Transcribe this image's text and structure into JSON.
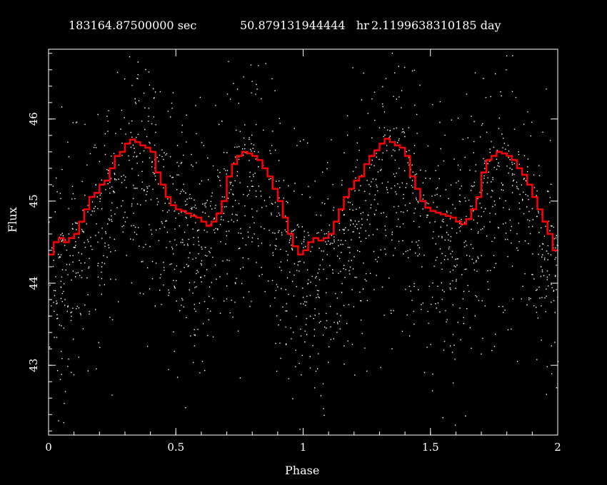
{
  "header": {
    "seconds": "183164.87500000 sec",
    "hours": "50.879131944444   hr",
    "days": "2.1199638310185 day"
  },
  "colors": {
    "background": "#000000",
    "points": "#ffffff",
    "model": "#ff0000",
    "axes": "#ffffff"
  },
  "chart_data": {
    "type": "scatter",
    "title": "",
    "xlabel": "Phase",
    "ylabel": "Flux",
    "xlim": [
      0,
      2
    ],
    "ylim": [
      42.15,
      46.85
    ],
    "x_ticks": [
      "0",
      "0.5",
      "1",
      "1.5",
      "2"
    ],
    "y_ticks": [
      "43",
      "44",
      "45",
      "46"
    ],
    "x_tick_values": [
      0,
      0.5,
      1,
      1.5,
      2
    ],
    "y_tick_values": [
      43,
      44,
      45,
      46
    ],
    "grid": false,
    "legend": "none",
    "series": [
      {
        "kind": "scatter",
        "description": "dense noisy flux measurements folded on phase, repeated over two cycles",
        "mean_phase": [
          0,
          0.1,
          0.2,
          0.3,
          0.33,
          0.4,
          0.5,
          0.6,
          0.7,
          0.78,
          0.85,
          0.95,
          1.0
        ],
        "mean_flux": [
          44.35,
          44.55,
          45.0,
          45.55,
          45.75,
          45.65,
          45.05,
          44.8,
          45.3,
          45.6,
          45.4,
          44.7,
          44.35
        ]
      },
      {
        "kind": "step",
        "description": "binned mean flux (red step curve)",
        "x": [
          0.0,
          0.02,
          0.04,
          0.06,
          0.08,
          0.1,
          0.12,
          0.14,
          0.16,
          0.18,
          0.2,
          0.22,
          0.24,
          0.26,
          0.28,
          0.3,
          0.32,
          0.34,
          0.36,
          0.38,
          0.4,
          0.42,
          0.44,
          0.46,
          0.48,
          0.5,
          0.52,
          0.54,
          0.56,
          0.58,
          0.6,
          0.62,
          0.64,
          0.66,
          0.68,
          0.7,
          0.72,
          0.74,
          0.76,
          0.78,
          0.8,
          0.82,
          0.84,
          0.86,
          0.88,
          0.9,
          0.92,
          0.94,
          0.96,
          0.98,
          1.0,
          1.02,
          1.04,
          1.06,
          1.08,
          1.1,
          1.12,
          1.14,
          1.16,
          1.18,
          1.2,
          1.22,
          1.24,
          1.26,
          1.28,
          1.3,
          1.32,
          1.34,
          1.36,
          1.38,
          1.4,
          1.42,
          1.44,
          1.46,
          1.48,
          1.5,
          1.52,
          1.54,
          1.56,
          1.58,
          1.6,
          1.62,
          1.64,
          1.66,
          1.68,
          1.7,
          1.72,
          1.74,
          1.76,
          1.78,
          1.8,
          1.82,
          1.84,
          1.86,
          1.88,
          1.9,
          1.92,
          1.94,
          1.96,
          1.98
        ],
        "y": [
          44.35,
          44.5,
          44.55,
          44.5,
          44.55,
          44.6,
          44.75,
          44.9,
          45.05,
          45.1,
          45.2,
          45.25,
          45.4,
          45.55,
          45.6,
          45.7,
          45.75,
          45.72,
          45.68,
          45.65,
          45.6,
          45.35,
          45.2,
          45.05,
          44.95,
          44.9,
          44.88,
          44.85,
          44.82,
          44.8,
          44.75,
          44.7,
          44.75,
          44.85,
          45.0,
          45.3,
          45.45,
          45.55,
          45.6,
          45.58,
          45.55,
          45.5,
          45.4,
          45.3,
          45.15,
          45.0,
          44.8,
          44.6,
          44.45,
          44.35,
          44.4,
          44.5,
          44.55,
          44.52,
          44.55,
          44.6,
          44.75,
          44.9,
          45.05,
          45.15,
          45.25,
          45.3,
          45.45,
          45.55,
          45.62,
          45.7,
          45.76,
          45.72,
          45.68,
          45.65,
          45.55,
          45.3,
          45.15,
          45.0,
          44.92,
          44.88,
          44.86,
          44.84,
          44.82,
          44.8,
          44.75,
          44.72,
          44.78,
          44.9,
          45.05,
          45.35,
          45.5,
          45.55,
          45.6,
          45.58,
          45.55,
          45.5,
          45.4,
          45.32,
          45.2,
          45.05,
          44.9,
          44.75,
          44.6,
          44.4
        ]
      }
    ]
  }
}
